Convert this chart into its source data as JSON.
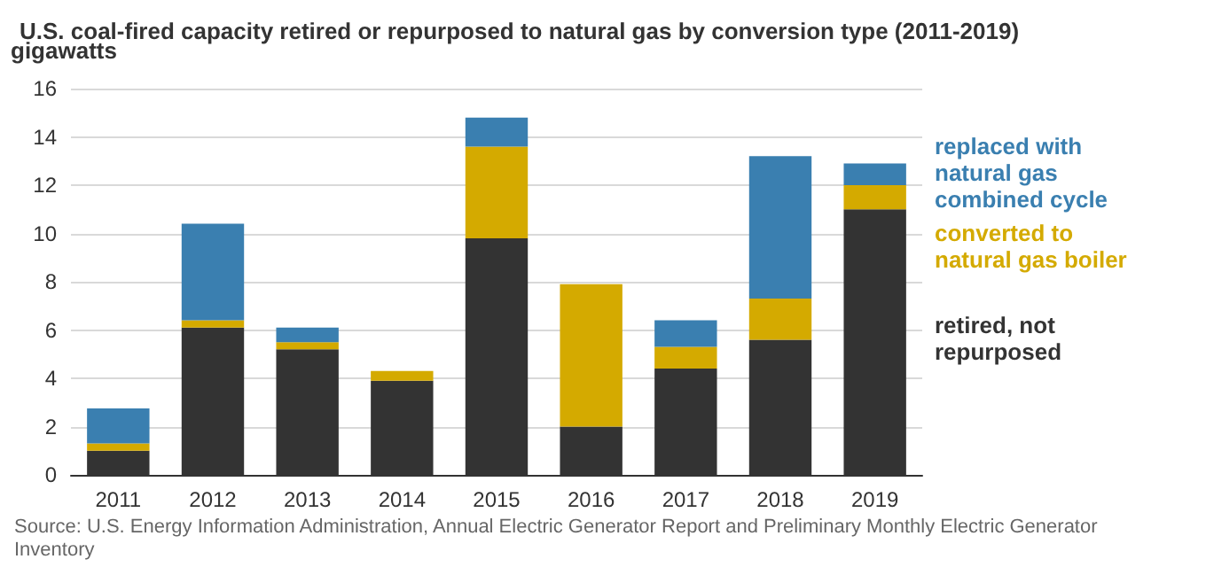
{
  "chart_data": {
    "type": "bar",
    "stacked": true,
    "title": "U.S. coal-fired capacity retired or repurposed to natural gas by conversion type (2011-2019)",
    "ylabel": "gigawatts",
    "categories": [
      "2011",
      "2012",
      "2013",
      "2014",
      "2015",
      "2016",
      "2017",
      "2018",
      "2019"
    ],
    "series": [
      {
        "name": "retired, not repurposed",
        "color": "#333333",
        "values": [
          1.0,
          6.1,
          5.2,
          3.9,
          9.8,
          2.0,
          4.4,
          5.6,
          11.0
        ]
      },
      {
        "name": "converted to natural gas boiler",
        "color": "#d4aa00",
        "values": [
          0.3,
          0.3,
          0.3,
          0.4,
          3.8,
          5.9,
          0.9,
          1.7,
          1.0
        ]
      },
      {
        "name": "replaced with natural gas combined cycle",
        "color": "#3a7fb0",
        "values": [
          1.45,
          4.0,
          0.6,
          0,
          1.2,
          0,
          1.1,
          5.9,
          0.9
        ]
      }
    ],
    "ylim": [
      0,
      16
    ],
    "yticks": [
      0,
      2,
      4,
      6,
      8,
      10,
      12,
      14,
      16
    ],
    "grid": "y",
    "legend": "right",
    "annotations": [
      "Source: U.S. Energy Information Administration, Annual Electric Generator Report and Preliminary Monthly Electric Generator Inventory"
    ]
  }
}
